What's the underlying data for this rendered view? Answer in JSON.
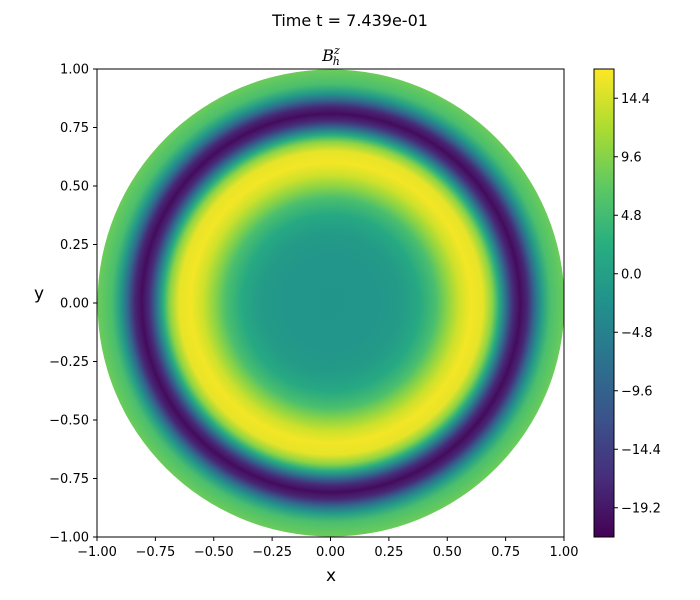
{
  "figure": {
    "suptitle": "Time t =  7.439e-01"
  },
  "chart_data": {
    "type": "heatmap",
    "title": {
      "base": "B",
      "superscript": "z",
      "subscript": "h"
    },
    "xlabel": "x",
    "ylabel": "y",
    "xlim": [
      -1.0,
      1.0
    ],
    "ylim": [
      -1.0,
      1.0
    ],
    "xticks": [
      "−1.00",
      "−0.75",
      "−0.50",
      "−0.25",
      "0.00",
      "0.25",
      "0.50",
      "0.75",
      "1.00"
    ],
    "yticks": [
      "1.00",
      "0.75",
      "0.50",
      "0.25",
      "0.00",
      "−0.25",
      "−0.50",
      "−0.75",
      "−1.00"
    ],
    "domain": "unit disk",
    "grid": false,
    "colormap": "viridis",
    "colorbar": {
      "range": [
        -21.6,
        16.8
      ],
      "ticks": [
        "14.4",
        "9.6",
        "4.8",
        "0.0",
        "−4.8",
        "−9.6",
        "−14.4",
        "−19.2"
      ],
      "tick_values": [
        14.4,
        9.6,
        4.8,
        0.0,
        -4.8,
        -9.6,
        -14.4,
        -19.2
      ]
    },
    "radial_profile": [
      {
        "r": 0.0,
        "value": -1.8
      },
      {
        "r": 0.2,
        "value": -1.5
      },
      {
        "r": 0.3,
        "value": -0.8
      },
      {
        "r": 0.38,
        "value": 1.5
      },
      {
        "r": 0.45,
        "value": 5.5
      },
      {
        "r": 0.5,
        "value": 10.0
      },
      {
        "r": 0.55,
        "value": 14.0
      },
      {
        "r": 0.6,
        "value": 16.2
      },
      {
        "r": 0.65,
        "value": 15.5
      },
      {
        "r": 0.69,
        "value": 10.0
      },
      {
        "r": 0.72,
        "value": 2.0
      },
      {
        "r": 0.75,
        "value": -8.0
      },
      {
        "r": 0.78,
        "value": -17.0
      },
      {
        "r": 0.81,
        "value": -20.5
      },
      {
        "r": 0.84,
        "value": -17.5
      },
      {
        "r": 0.87,
        "value": -9.0
      },
      {
        "r": 0.9,
        "value": -1.0
      },
      {
        "r": 0.94,
        "value": 5.5
      },
      {
        "r": 1.0,
        "value": 8.0
      }
    ]
  }
}
